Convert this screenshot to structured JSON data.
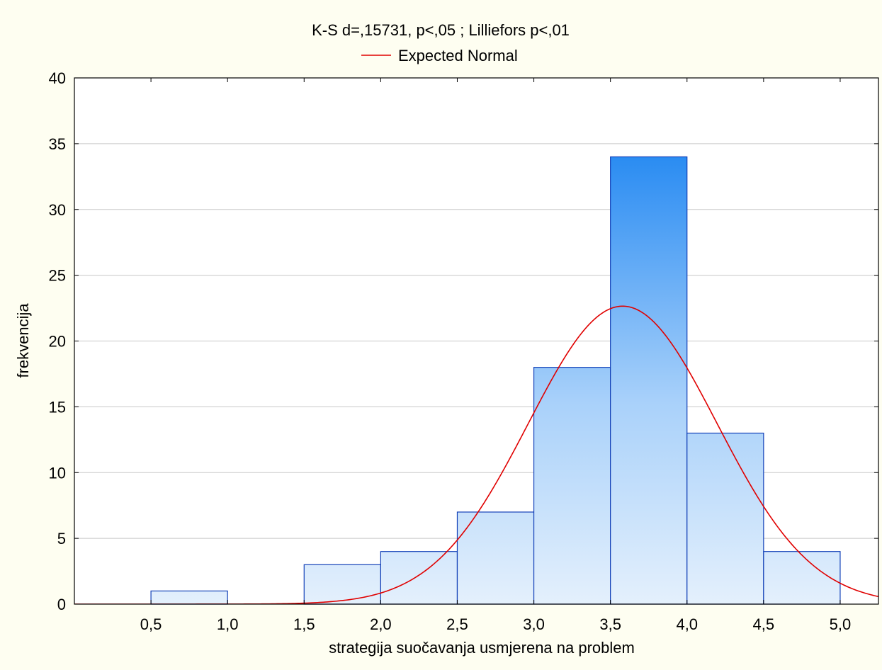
{
  "chart_data": {
    "type": "bar",
    "title": "K-S d=,15731, p<,05 ; Lilliefors p<,01",
    "legend": {
      "position": "top-center",
      "entries": [
        {
          "label": "Expected Normal",
          "color": "#e00000"
        }
      ]
    },
    "xlabel": "strategija suočavanja usmjerena na problem",
    "ylabel": "frekvencija",
    "xlim": [
      0,
      5.25
    ],
    "ylim": [
      0,
      40
    ],
    "x_ticks": [
      {
        "v": 0.5,
        "label": "0,5"
      },
      {
        "v": 1.0,
        "label": "1,0"
      },
      {
        "v": 1.5,
        "label": "1,5"
      },
      {
        "v": 2.0,
        "label": "2,0"
      },
      {
        "v": 2.5,
        "label": "2,5"
      },
      {
        "v": 3.0,
        "label": "3,0"
      },
      {
        "v": 3.5,
        "label": "3,5"
      },
      {
        "v": 4.0,
        "label": "4,0"
      },
      {
        "v": 4.5,
        "label": "4,5"
      },
      {
        "v": 5.0,
        "label": "5,0"
      }
    ],
    "y_ticks": [
      {
        "v": 0,
        "label": "0"
      },
      {
        "v": 5,
        "label": "5"
      },
      {
        "v": 10,
        "label": "10"
      },
      {
        "v": 15,
        "label": "15"
      },
      {
        "v": 20,
        "label": "20"
      },
      {
        "v": 25,
        "label": "25"
      },
      {
        "v": 30,
        "label": "30"
      },
      {
        "v": 35,
        "label": "35"
      },
      {
        "v": 40,
        "label": "40"
      }
    ],
    "bins": [
      {
        "from": 0.5,
        "to": 1.0,
        "value": 1
      },
      {
        "from": 1.0,
        "to": 1.5,
        "value": 0
      },
      {
        "from": 1.5,
        "to": 2.0,
        "value": 3
      },
      {
        "from": 2.0,
        "to": 2.5,
        "value": 4
      },
      {
        "from": 2.5,
        "to": 3.0,
        "value": 7
      },
      {
        "from": 3.0,
        "to": 3.5,
        "value": 18
      },
      {
        "from": 3.5,
        "to": 4.0,
        "value": 34
      },
      {
        "from": 4.0,
        "to": 4.5,
        "value": 13
      },
      {
        "from": 4.5,
        "to": 5.0,
        "value": 4
      }
    ],
    "expected_normal": {
      "mean": 3.58,
      "sd": 0.616,
      "peak": 22.65
    },
    "grid": {
      "horizontal": true,
      "vertical": false
    },
    "colors": {
      "background": "#fefef1",
      "plot": "#ffffff",
      "bar_top": "#2a8cf2",
      "bar_bottom": "#e4f0fc",
      "bar_edge": "#1240b8",
      "curve": "#e00000",
      "grid": "#c8c8c8"
    }
  }
}
